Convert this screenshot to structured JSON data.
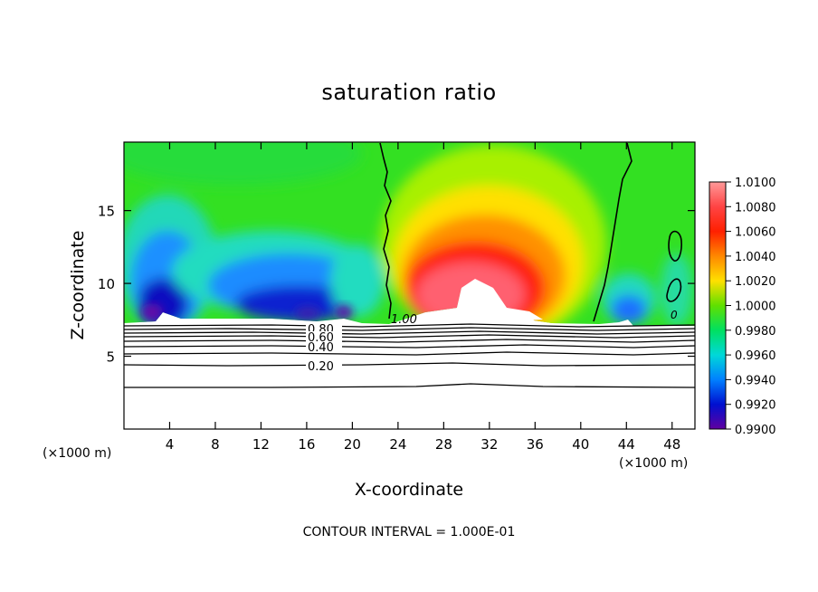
{
  "chart_data": {
    "type": "heatmap",
    "title": "saturation ratio",
    "xlabel": "X-coordinate",
    "ylabel": "Z-coordinate",
    "x_unit": "(×1000 m)",
    "y_unit": "(×1000 m)",
    "xlim": [
      0,
      50
    ],
    "ylim": [
      0,
      19.7
    ],
    "x_ticks": [
      4,
      8,
      12,
      16,
      20,
      24,
      28,
      32,
      36,
      40,
      44,
      48
    ],
    "y_ticks": [
      5,
      10,
      15
    ],
    "colorbar": {
      "min": 0.99,
      "max": 1.01,
      "tick_labels": [
        "1.0100",
        "1.0080",
        "1.0060",
        "1.0040",
        "1.0020",
        "1.0000",
        "0.9980",
        "0.9960",
        "0.9940",
        "0.9920",
        "0.9900"
      ]
    },
    "contour_labels": [
      "0.80",
      "0.60",
      "0.40",
      "0.20",
      "1.00",
      "0"
    ],
    "footer": "CONTOUR INTERVAL = 1.000E-01"
  }
}
